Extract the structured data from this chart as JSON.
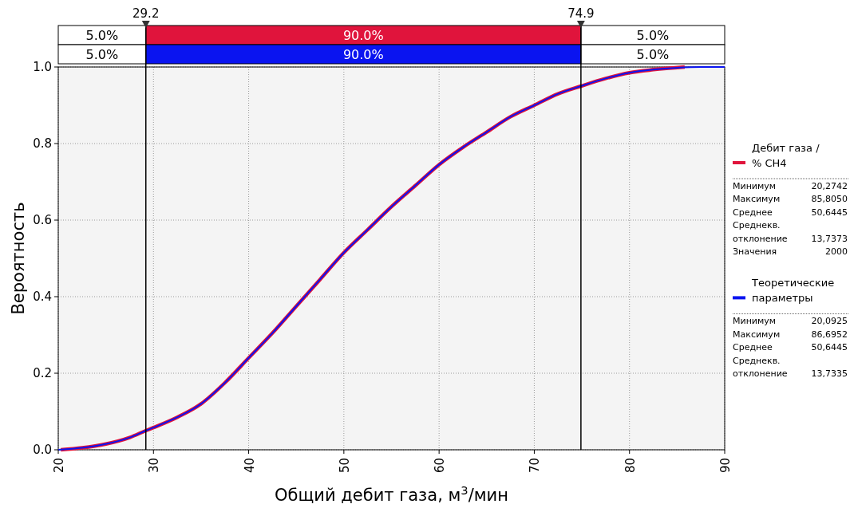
{
  "chart_data": {
    "type": "line",
    "xlabel": "Общий дебит газа, м$^{3}$/мин",
    "ylabel": "Вероятность",
    "xlim": [
      20,
      90
    ],
    "xticks": [
      20,
      30,
      40,
      50,
      60,
      70,
      80,
      90
    ],
    "ylim": [
      0,
      1
    ],
    "yticks": [
      {
        "value": 0,
        "label": "0.0"
      },
      {
        "value": 0.2,
        "label": "0.2"
      },
      {
        "value": 0.4,
        "label": "0.4"
      },
      {
        "value": 0.6,
        "label": "0.6"
      },
      {
        "value": 0.8,
        "label": "0.8"
      },
      {
        "value": 1,
        "label": "1.0"
      }
    ],
    "grid": true,
    "legend": "right",
    "series": [
      {
        "name": "Дебит газа / % CH4",
        "color": "#e0143c",
        "x": [
          20.27,
          22.5,
          25,
          27.5,
          29.2,
          30,
          32.5,
          35,
          37.5,
          40,
          42.5,
          45,
          47.5,
          50,
          52.5,
          55,
          57.5,
          60,
          62.5,
          65,
          67.5,
          70,
          72.5,
          74.9,
          77.5,
          80,
          82.5,
          85.8
        ],
        "values": [
          0,
          0.005,
          0.015,
          0.032,
          0.05,
          0.058,
          0.085,
          0.12,
          0.175,
          0.24,
          0.305,
          0.375,
          0.445,
          0.515,
          0.575,
          0.635,
          0.69,
          0.745,
          0.79,
          0.83,
          0.87,
          0.9,
          0.93,
          0.95,
          0.97,
          0.985,
          0.993,
          1
        ]
      },
      {
        "name": "Теоретические параметры",
        "color": "#0a14f0",
        "x": [
          20,
          22.5,
          25,
          27.5,
          29.2,
          30,
          32.5,
          35,
          37.5,
          40,
          42.5,
          45,
          47.5,
          50,
          52.5,
          55,
          57.5,
          60,
          62.5,
          65,
          67.5,
          70,
          72.5,
          74.9,
          77.5,
          80,
          82.5,
          85,
          87.5,
          90
        ],
        "values": [
          0,
          0.005,
          0.015,
          0.032,
          0.05,
          0.058,
          0.085,
          0.12,
          0.175,
          0.24,
          0.305,
          0.375,
          0.445,
          0.515,
          0.575,
          0.635,
          0.69,
          0.745,
          0.79,
          0.83,
          0.87,
          0.9,
          0.93,
          0.95,
          0.97,
          0.985,
          0.993,
          0.998,
          1,
          1
        ]
      }
    ],
    "ref_lines": [
      {
        "axis": "x",
        "value": 29.2,
        "label": "29.2",
        "color": "#000000"
      },
      {
        "axis": "x",
        "value": 74.9,
        "label": "74.9",
        "color": "#000000"
      }
    ],
    "annotations": [
      "5.0%",
      "90.0%",
      "5.0%",
      "5.0%",
      "90.0%",
      "5.0%",
      "Минимум 20,2742",
      "Максимум 85,8050",
      "Среднее 50,6445",
      "Среднекв.",
      "отклонение 13,7373",
      "Значения 2000",
      "Минимум 20,0925",
      "Максимум 86,6952",
      "Среднее 50,6445",
      "Среднекв.",
      "отклонение 13,7335"
    ]
  }
}
